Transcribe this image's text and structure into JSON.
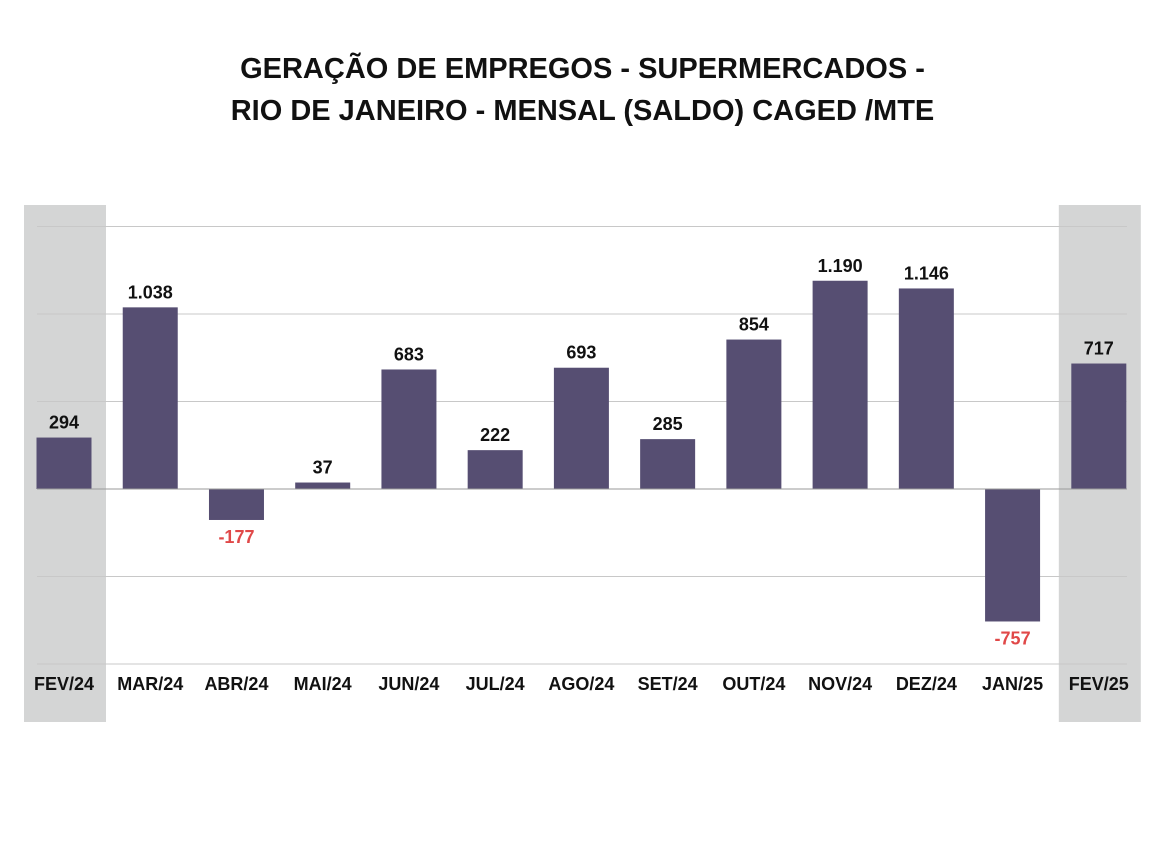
{
  "chart_data": {
    "type": "bar",
    "title": [
      "GERAÇÃO DE EMPREGOS - SUPERMERCADOS -",
      "RIO DE JANEIRO - MENSAL (SALDO) CAGED /MTE"
    ],
    "categories": [
      "FEV/24",
      "MAR/24",
      "ABR/24",
      "MAI/24",
      "JUN/24",
      "JUL/24",
      "AGO/24",
      "SET/24",
      "OUT/24",
      "NOV/24",
      "DEZ/24",
      "JAN/25",
      "FEV/25"
    ],
    "values": [
      294,
      1038,
      -177,
      37,
      683,
      222,
      693,
      285,
      854,
      1190,
      1146,
      -757,
      717
    ],
    "value_labels": [
      "294",
      "1.038",
      "-177",
      "37",
      "683",
      "222",
      "693",
      "285",
      "854",
      "1.190",
      "1.146",
      "-757",
      "717"
    ],
    "highlighted_categories": [
      "FEV/24",
      "FEV/25"
    ],
    "ylim": [
      -1000,
      1500
    ],
    "grid_step": 500,
    "grid": true,
    "xlabel": "",
    "ylabel": "",
    "colors": {
      "bar": "#564e72",
      "positive_label": "#111111",
      "negative_label": "#e04848",
      "highlight": "#d4d5d5",
      "grid": "#c8c8c8",
      "zero_line": "#9a9a9a"
    }
  }
}
